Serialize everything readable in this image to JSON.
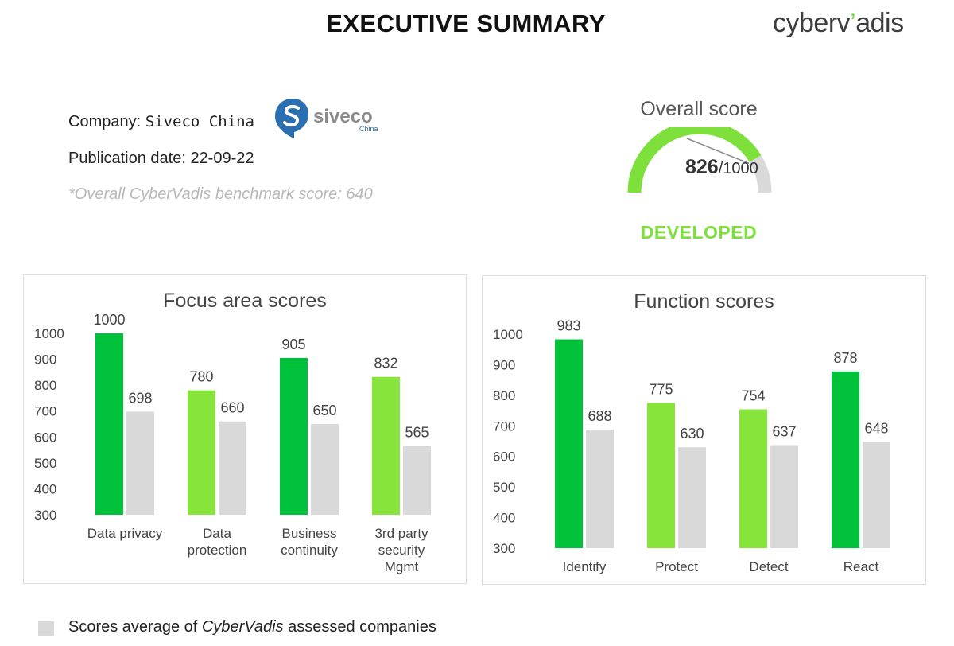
{
  "header": {
    "title": "EXECUTIVE SUMMARY",
    "brand_main": "cyberv",
    "brand_accent": "’",
    "brand_tail": "adis"
  },
  "company": {
    "label": "Company: ",
    "name": "Siveco China",
    "logo_text": "siveco",
    "logo_sub": "China",
    "publication_label": "Publication date: 22-09-22",
    "benchmark_label": "*Overall CyberVadis benchmark score: 640"
  },
  "overall": {
    "label": "Overall score",
    "score": "826",
    "max": "/1000",
    "score_value": 826,
    "max_value": 1000,
    "rating": "DEVELOPED"
  },
  "colors": {
    "dark_green": "#00c13a",
    "light_green": "#86e43b",
    "grey": "#d9d9d9",
    "gauge_green": "#7ee03a"
  },
  "legend": {
    "prefix": "Scores average of ",
    "italic": "CyberVadis",
    "suffix": " assessed companies"
  },
  "chart_data": [
    {
      "type": "bar",
      "title": "Focus area scores",
      "ylim": [
        300,
        1000
      ],
      "yticks": [
        300,
        400,
        500,
        600,
        700,
        800,
        900,
        1000
      ],
      "categories": [
        [
          "Data privacy"
        ],
        [
          "Data",
          "protection"
        ],
        [
          "Business",
          "continuity"
        ],
        [
          "3rd party",
          "security",
          "Mgmt"
        ]
      ],
      "series": [
        {
          "values": [
            1000,
            780,
            905,
            832
          ],
          "colors": [
            "#00c13a",
            "#86e43b",
            "#00c13a",
            "#86e43b"
          ]
        },
        {
          "name": "Scores average of CyberVadis assessed companies",
          "values": [
            698,
            660,
            650,
            565
          ],
          "colors": [
            "#d9d9d9",
            "#d9d9d9",
            "#d9d9d9",
            "#d9d9d9"
          ]
        }
      ]
    },
    {
      "type": "bar",
      "title": "Function scores",
      "ylim": [
        300,
        1000
      ],
      "yticks": [
        300,
        400,
        500,
        600,
        700,
        800,
        900,
        1000
      ],
      "categories": [
        [
          "Identify"
        ],
        [
          "Protect"
        ],
        [
          "Detect"
        ],
        [
          "React"
        ]
      ],
      "series": [
        {
          "values": [
            983,
            775,
            754,
            878
          ],
          "colors": [
            "#00c13a",
            "#86e43b",
            "#86e43b",
            "#00c13a"
          ]
        },
        {
          "name": "Scores average of CyberVadis assessed companies",
          "values": [
            688,
            630,
            637,
            648
          ],
          "colors": [
            "#d9d9d9",
            "#d9d9d9",
            "#d9d9d9",
            "#d9d9d9"
          ]
        }
      ]
    }
  ]
}
